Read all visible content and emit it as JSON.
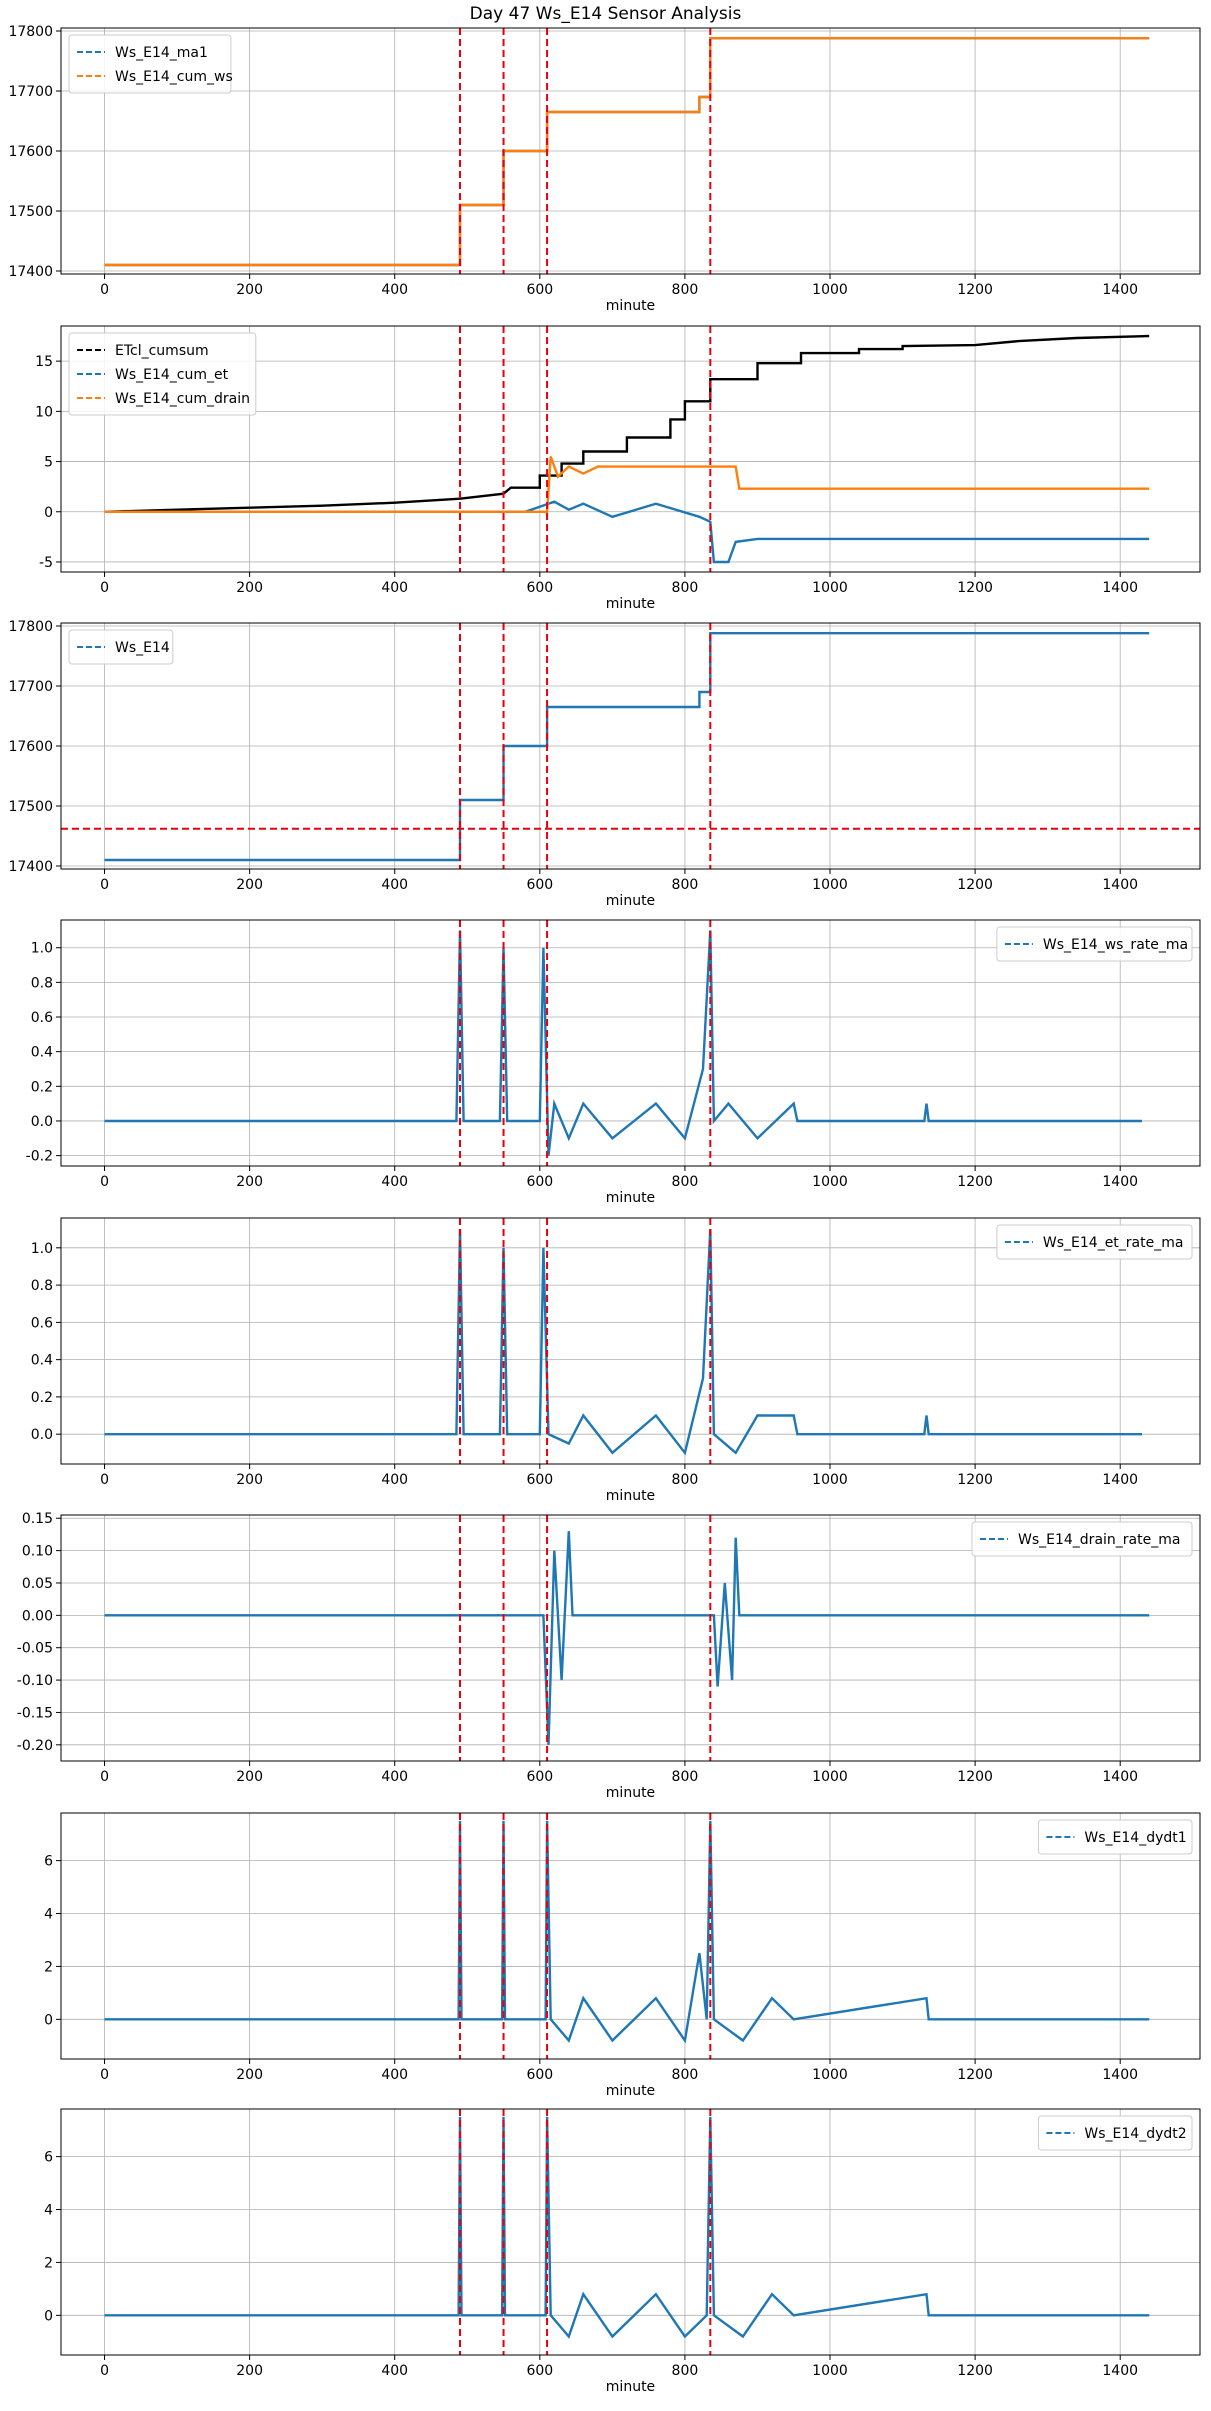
{
  "figure_title": "Day 47 Ws_E14 Sensor Analysis",
  "colors": {
    "blue": "#1f77b4",
    "orange": "#ff7f0e",
    "black": "#000000",
    "red": "#e8000b",
    "grid": "#b0b0b0"
  },
  "chart_data": [
    {
      "type": "line",
      "xlabel": "minute",
      "xlim": [
        -60,
        1510
      ],
      "xticks": [
        0,
        200,
        400,
        600,
        800,
        1000,
        1200,
        1400
      ],
      "ylim": [
        17395,
        17805
      ],
      "yticks": [
        17400,
        17500,
        17600,
        17700,
        17800
      ],
      "legend": "top-left",
      "vlines": [
        490,
        550,
        610,
        835
      ],
      "hlines": [],
      "series": [
        {
          "name": "Ws_E14_ma1",
          "color": "#1f77b4",
          "points": [
            [
              0,
              17410
            ],
            [
              490,
              17410
            ],
            [
              490,
              17510
            ],
            [
              550,
              17510
            ],
            [
              550,
              17600
            ],
            [
              610,
              17600
            ],
            [
              610,
              17665
            ],
            [
              820,
              17665
            ],
            [
              820,
              17690
            ],
            [
              835,
              17690
            ],
            [
              835,
              17788
            ],
            [
              1440,
              17788
            ]
          ]
        },
        {
          "name": "Ws_E14_cum_ws",
          "color": "#ff7f0e",
          "points": [
            [
              0,
              17410
            ],
            [
              490,
              17410
            ],
            [
              490,
              17510
            ],
            [
              550,
              17510
            ],
            [
              550,
              17600
            ],
            [
              610,
              17600
            ],
            [
              610,
              17665
            ],
            [
              820,
              17665
            ],
            [
              820,
              17690
            ],
            [
              835,
              17690
            ],
            [
              835,
              17788
            ],
            [
              1440,
              17788
            ]
          ]
        }
      ]
    },
    {
      "type": "line",
      "xlabel": "minute",
      "xlim": [
        -60,
        1510
      ],
      "xticks": [
        0,
        200,
        400,
        600,
        800,
        1000,
        1200,
        1400
      ],
      "ylim": [
        -6,
        18.5
      ],
      "yticks": [
        -5,
        0,
        5,
        10,
        15
      ],
      "legend": "top-left",
      "vlines": [
        490,
        550,
        610,
        835
      ],
      "hlines": [],
      "series": [
        {
          "name": "ETcl_cumsum",
          "color": "#000000",
          "points": [
            [
              0,
              0
            ],
            [
              100,
              0.2
            ],
            [
              200,
              0.4
            ],
            [
              300,
              0.6
            ],
            [
              400,
              0.9
            ],
            [
              490,
              1.3
            ],
            [
              550,
              1.8
            ],
            [
              560,
              2.4
            ],
            [
              600,
              2.4
            ],
            [
              600,
              3.6
            ],
            [
              630,
              3.6
            ],
            [
              630,
              4.8
            ],
            [
              660,
              4.8
            ],
            [
              660,
              6.0
            ],
            [
              720,
              6.0
            ],
            [
              720,
              7.4
            ],
            [
              780,
              7.4
            ],
            [
              780,
              9.2
            ],
            [
              800,
              9.2
            ],
            [
              800,
              11.0
            ],
            [
              835,
              11.0
            ],
            [
              835,
              13.2
            ],
            [
              900,
              13.2
            ],
            [
              900,
              14.8
            ],
            [
              960,
              14.8
            ],
            [
              960,
              15.8
            ],
            [
              1040,
              15.8
            ],
            [
              1040,
              16.2
            ],
            [
              1100,
              16.2
            ],
            [
              1100,
              16.5
            ],
            [
              1200,
              16.6
            ],
            [
              1260,
              17.0
            ],
            [
              1340,
              17.3
            ],
            [
              1440,
              17.5
            ]
          ]
        },
        {
          "name": "Ws_E14_cum_et",
          "color": "#1f77b4",
          "points": [
            [
              0,
              0
            ],
            [
              580,
              0
            ],
            [
              620,
              1.0
            ],
            [
              640,
              0.2
            ],
            [
              660,
              0.8
            ],
            [
              700,
              -0.5
            ],
            [
              760,
              0.8
            ],
            [
              820,
              -0.5
            ],
            [
              835,
              -1.0
            ],
            [
              840,
              -5.0
            ],
            [
              860,
              -5.0
            ],
            [
              870,
              -3.0
            ],
            [
              900,
              -2.7
            ],
            [
              1440,
              -2.7
            ]
          ]
        },
        {
          "name": "Ws_E14_cum_drain",
          "color": "#ff7f0e",
          "points": [
            [
              0,
              0
            ],
            [
              610,
              0
            ],
            [
              615,
              5.5
            ],
            [
              625,
              3.5
            ],
            [
              640,
              4.5
            ],
            [
              660,
              3.8
            ],
            [
              680,
              4.5
            ],
            [
              870,
              4.5
            ],
            [
              875,
              2.3
            ],
            [
              1440,
              2.3
            ]
          ]
        }
      ]
    },
    {
      "type": "line",
      "xlabel": "minute",
      "xlim": [
        -60,
        1510
      ],
      "xticks": [
        0,
        200,
        400,
        600,
        800,
        1000,
        1200,
        1400
      ],
      "ylim": [
        17395,
        17805
      ],
      "yticks": [
        17400,
        17500,
        17600,
        17700,
        17800
      ],
      "legend": "top-left",
      "vlines": [
        490,
        550,
        610,
        835
      ],
      "hlines": [
        17462
      ],
      "series": [
        {
          "name": "Ws_E14",
          "color": "#1f77b4",
          "points": [
            [
              0,
              17410
            ],
            [
              490,
              17410
            ],
            [
              490,
              17510
            ],
            [
              550,
              17510
            ],
            [
              550,
              17600
            ],
            [
              610,
              17600
            ],
            [
              610,
              17665
            ],
            [
              820,
              17665
            ],
            [
              820,
              17690
            ],
            [
              835,
              17690
            ],
            [
              835,
              17788
            ],
            [
              1440,
              17788
            ]
          ]
        }
      ]
    },
    {
      "type": "line",
      "xlabel": "minute",
      "xlim": [
        -60,
        1510
      ],
      "xticks": [
        0,
        200,
        400,
        600,
        800,
        1000,
        1200,
        1400
      ],
      "ylim": [
        -0.26,
        1.16
      ],
      "yticks": [
        -0.2,
        0.0,
        0.2,
        0.4,
        0.6,
        0.8,
        1.0
      ],
      "legend": "top-right",
      "vlines": [
        490,
        550,
        610,
        835
      ],
      "hlines": [],
      "series": [
        {
          "name": "Ws_E14_ws_rate_ma",
          "color": "#1f77b4",
          "points": [
            [
              0,
              0
            ],
            [
              485,
              0
            ],
            [
              490,
              1.1
            ],
            [
              495,
              0
            ],
            [
              545,
              0
            ],
            [
              550,
              1.0
            ],
            [
              555,
              0
            ],
            [
              600,
              0
            ],
            [
              605,
              1.0
            ],
            [
              612,
              -0.2
            ],
            [
              620,
              0.1
            ],
            [
              640,
              -0.1
            ],
            [
              660,
              0.1
            ],
            [
              700,
              -0.1
            ],
            [
              760,
              0.1
            ],
            [
              800,
              -0.1
            ],
            [
              825,
              0.3
            ],
            [
              835,
              1.1
            ],
            [
              840,
              0
            ],
            [
              860,
              0.1
            ],
            [
              900,
              -0.1
            ],
            [
              950,
              0.1
            ],
            [
              955,
              0
            ],
            [
              1130,
              0
            ],
            [
              1133,
              0.1
            ],
            [
              1136,
              0
            ],
            [
              1430,
              0
            ]
          ]
        }
      ]
    },
    {
      "type": "line",
      "xlabel": "minute",
      "xlim": [
        -60,
        1510
      ],
      "xticks": [
        0,
        200,
        400,
        600,
        800,
        1000,
        1200,
        1400
      ],
      "ylim": [
        -0.16,
        1.16
      ],
      "yticks": [
        0.0,
        0.2,
        0.4,
        0.6,
        0.8,
        1.0
      ],
      "legend": "top-right",
      "vlines": [
        490,
        550,
        610,
        835
      ],
      "hlines": [],
      "series": [
        {
          "name": "Ws_E14_et_rate_ma",
          "color": "#1f77b4",
          "points": [
            [
              0,
              0
            ],
            [
              485,
              0
            ],
            [
              490,
              1.1
            ],
            [
              495,
              0
            ],
            [
              545,
              0
            ],
            [
              550,
              1.0
            ],
            [
              555,
              0
            ],
            [
              600,
              0
            ],
            [
              605,
              1.0
            ],
            [
              612,
              0
            ],
            [
              640,
              -0.05
            ],
            [
              660,
              0.1
            ],
            [
              700,
              -0.1
            ],
            [
              760,
              0.1
            ],
            [
              800,
              -0.1
            ],
            [
              825,
              0.3
            ],
            [
              835,
              1.1
            ],
            [
              840,
              0
            ],
            [
              870,
              -0.1
            ],
            [
              900,
              0.1
            ],
            [
              950,
              0.1
            ],
            [
              955,
              0
            ],
            [
              1130,
              0
            ],
            [
              1133,
              0.1
            ],
            [
              1136,
              0
            ],
            [
              1430,
              0
            ]
          ]
        }
      ]
    },
    {
      "type": "line",
      "xlabel": "minute",
      "xlim": [
        -60,
        1510
      ],
      "xticks": [
        0,
        200,
        400,
        600,
        800,
        1000,
        1200,
        1400
      ],
      "ylim": [
        -0.225,
        0.155
      ],
      "yticks": [
        -0.2,
        -0.15,
        -0.1,
        -0.05,
        0.0,
        0.05,
        0.1,
        0.15
      ],
      "legend": "top-right",
      "vlines": [
        490,
        550,
        610,
        835
      ],
      "hlines": [],
      "series": [
        {
          "name": "Ws_E14_drain_rate_ma",
          "color": "#1f77b4",
          "points": [
            [
              0,
              0
            ],
            [
              605,
              0
            ],
            [
              612,
              -0.2
            ],
            [
              620,
              0.1
            ],
            [
              630,
              -0.1
            ],
            [
              640,
              0.13
            ],
            [
              645,
              0
            ],
            [
              840,
              0
            ],
            [
              845,
              -0.11
            ],
            [
              855,
              0.05
            ],
            [
              865,
              -0.1
            ],
            [
              870,
              0.12
            ],
            [
              875,
              0
            ],
            [
              1440,
              0
            ]
          ]
        }
      ]
    },
    {
      "type": "line",
      "xlabel": "minute",
      "xlim": [
        -60,
        1510
      ],
      "xticks": [
        0,
        200,
        400,
        600,
        800,
        1000,
        1200,
        1400
      ],
      "ylim": [
        -1.5,
        7.8
      ],
      "yticks": [
        0,
        2,
        4,
        6
      ],
      "legend": "top-right",
      "vlines": [
        490,
        550,
        610,
        835
      ],
      "hlines": [],
      "series": [
        {
          "name": "Ws_E14_dydt1",
          "color": "#1f77b4",
          "points": [
            [
              0,
              0
            ],
            [
              488,
              0
            ],
            [
              490,
              7.5
            ],
            [
              492,
              0
            ],
            [
              548,
              0
            ],
            [
              550,
              7.5
            ],
            [
              552,
              0
            ],
            [
              608,
              0
            ],
            [
              610,
              7.5
            ],
            [
              615,
              0
            ],
            [
              640,
              -0.8
            ],
            [
              660,
              0.8
            ],
            [
              700,
              -0.8
            ],
            [
              760,
              0.8
            ],
            [
              800,
              -0.8
            ],
            [
              820,
              2.5
            ],
            [
              830,
              0
            ],
            [
              835,
              7.5
            ],
            [
              840,
              0
            ],
            [
              880,
              -0.8
            ],
            [
              920,
              0.8
            ],
            [
              950,
              0
            ],
            [
              1133,
              0.8
            ],
            [
              1136,
              0
            ],
            [
              1440,
              0
            ]
          ]
        }
      ]
    },
    {
      "type": "line",
      "xlabel": "minute",
      "xlim": [
        -60,
        1510
      ],
      "xticks": [
        0,
        200,
        400,
        600,
        800,
        1000,
        1200,
        1400
      ],
      "ylim": [
        -1.5,
        7.8
      ],
      "yticks": [
        0,
        2,
        4,
        6
      ],
      "legend": "top-right",
      "vlines": [
        490,
        550,
        610,
        835
      ],
      "hlines": [],
      "series": [
        {
          "name": "Ws_E14_dydt2",
          "color": "#1f77b4",
          "points": [
            [
              0,
              0
            ],
            [
              488,
              0
            ],
            [
              490,
              7.5
            ],
            [
              492,
              0
            ],
            [
              548,
              0
            ],
            [
              550,
              7.5
            ],
            [
              552,
              0
            ],
            [
              608,
              0
            ],
            [
              610,
              7.5
            ],
            [
              615,
              0
            ],
            [
              640,
              -0.8
            ],
            [
              660,
              0.8
            ],
            [
              700,
              -0.8
            ],
            [
              760,
              0.8
            ],
            [
              800,
              -0.8
            ],
            [
              830,
              0
            ],
            [
              835,
              7.5
            ],
            [
              840,
              0
            ],
            [
              880,
              -0.8
            ],
            [
              920,
              0.8
            ],
            [
              950,
              0
            ],
            [
              1133,
              0.8
            ],
            [
              1136,
              0
            ],
            [
              1440,
              0
            ]
          ]
        }
      ]
    }
  ]
}
